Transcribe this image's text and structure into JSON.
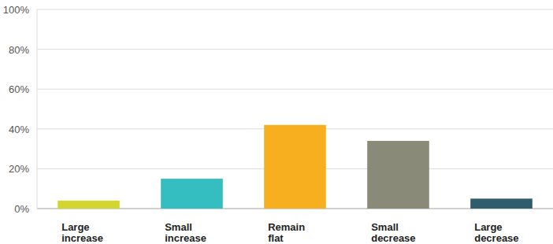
{
  "chart_data": {
    "type": "bar",
    "categories": [
      "Large increase",
      "Small increase",
      "Remain flat",
      "Small decrease",
      "Large decrease"
    ],
    "values": [
      4,
      15,
      42,
      34,
      5
    ],
    "colors": [
      "#d3d62e",
      "#34bec0",
      "#f7ae1f",
      "#8a8a78",
      "#2f5d6b"
    ],
    "ylim": [
      0,
      100
    ],
    "yticks": [
      {
        "value": 0,
        "label": "0%"
      },
      {
        "value": 20,
        "label": "20%"
      },
      {
        "value": 40,
        "label": "40%"
      },
      {
        "value": 60,
        "label": "60%"
      },
      {
        "value": 80,
        "label": "80%"
      },
      {
        "value": 100,
        "label": "100%"
      }
    ],
    "grid": true
  }
}
